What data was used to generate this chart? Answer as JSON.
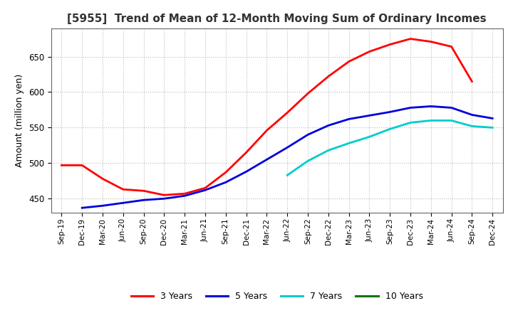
{
  "title": "[5955]  Trend of Mean of 12-Month Moving Sum of Ordinary Incomes",
  "ylabel": "Amount (million yen)",
  "x_labels": [
    "Sep-19",
    "Dec-19",
    "Mar-20",
    "Jun-20",
    "Sep-20",
    "Dec-20",
    "Mar-21",
    "Jun-21",
    "Sep-21",
    "Dec-21",
    "Mar-22",
    "Jun-22",
    "Sep-22",
    "Dec-22",
    "Mar-23",
    "Jun-23",
    "Sep-23",
    "Dec-23",
    "Mar-24",
    "Jun-24",
    "Sep-24",
    "Dec-24"
  ],
  "ylim": [
    430,
    690
  ],
  "yticks": [
    450,
    500,
    550,
    600,
    650
  ],
  "background_color": "#ffffff",
  "grid_color": "#bbbbbb",
  "title_fontsize": 11,
  "legend_colors": {
    "3 Years": "#ff0000",
    "5 Years": "#0000dd",
    "7 Years": "#00cccc",
    "10 Years": "#007700"
  },
  "series": {
    "3 Years": {
      "color": "#ff0000",
      "y": [
        497,
        497,
        478,
        463,
        461,
        455,
        457,
        465,
        487,
        515,
        546,
        571,
        598,
        622,
        643,
        657,
        667,
        675,
        671,
        664,
        615,
        null
      ]
    },
    "5 Years": {
      "color": "#0000dd",
      "y": [
        null,
        437,
        440,
        444,
        448,
        450,
        454,
        462,
        473,
        488,
        505,
        522,
        540,
        553,
        562,
        567,
        572,
        578,
        580,
        578,
        568,
        563
      ]
    },
    "7 Years": {
      "color": "#00cccc",
      "y": [
        null,
        null,
        null,
        null,
        null,
        null,
        null,
        null,
        null,
        null,
        null,
        483,
        503,
        518,
        528,
        537,
        548,
        557,
        560,
        560,
        552,
        550
      ]
    },
    "10 Years": {
      "color": "#007700",
      "y": [
        null,
        null,
        null,
        null,
        null,
        null,
        null,
        null,
        null,
        null,
        null,
        null,
        null,
        null,
        null,
        null,
        null,
        null,
        null,
        null,
        null,
        null
      ]
    }
  }
}
